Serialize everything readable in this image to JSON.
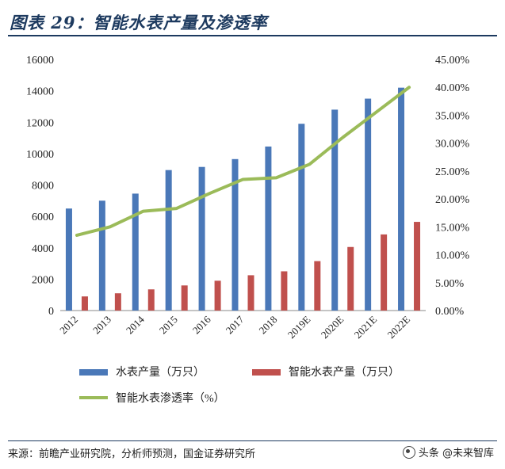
{
  "title": "图表 29：智能水表产量及渗透率",
  "source": "来源：前瞻产业研究院，分析师预测，国金证券研究所",
  "watermark": "头条 @未来智库",
  "chart_data": {
    "type": "bar",
    "title": "图表 29：智能水表产量及渗透率",
    "categories": [
      "2012",
      "2013",
      "2014",
      "2015",
      "2016",
      "2017",
      "2018",
      "2019E",
      "2020E",
      "2021E",
      "2022E"
    ],
    "series": [
      {
        "name": "水表产量（万只）",
        "type": "bar",
        "axis": "left",
        "color": "#4a78b8",
        "values": [
          6500,
          7000,
          7450,
          8950,
          9150,
          9650,
          10450,
          11900,
          12800,
          13500,
          14200
        ]
      },
      {
        "name": "智能水表产量（万只）",
        "type": "bar",
        "axis": "left",
        "color": "#c0504d",
        "values": [
          900,
          1100,
          1350,
          1600,
          1900,
          2250,
          2500,
          3150,
          4050,
          4850,
          5650
        ]
      },
      {
        "name": "智能水表渗透率（%）",
        "type": "line",
        "axis": "right",
        "color": "#9bbb59",
        "values": [
          13.5,
          15.0,
          17.8,
          18.3,
          21.0,
          23.5,
          23.8,
          26.2,
          31.0,
          35.5,
          40.0
        ]
      }
    ],
    "y_left": {
      "min": 0,
      "max": 16000,
      "step": 2000,
      "ticks": [
        "0",
        "2000",
        "4000",
        "6000",
        "8000",
        "10000",
        "12000",
        "14000",
        "16000"
      ]
    },
    "y_right": {
      "min": 0,
      "max": 45,
      "step": 5,
      "ticks": [
        "0.00%",
        "5.00%",
        "10.00%",
        "15.00%",
        "20.00%",
        "25.00%",
        "30.00%",
        "35.00%",
        "40.00%",
        "45.00%"
      ]
    },
    "grid": false,
    "legend_position": "bottom"
  }
}
